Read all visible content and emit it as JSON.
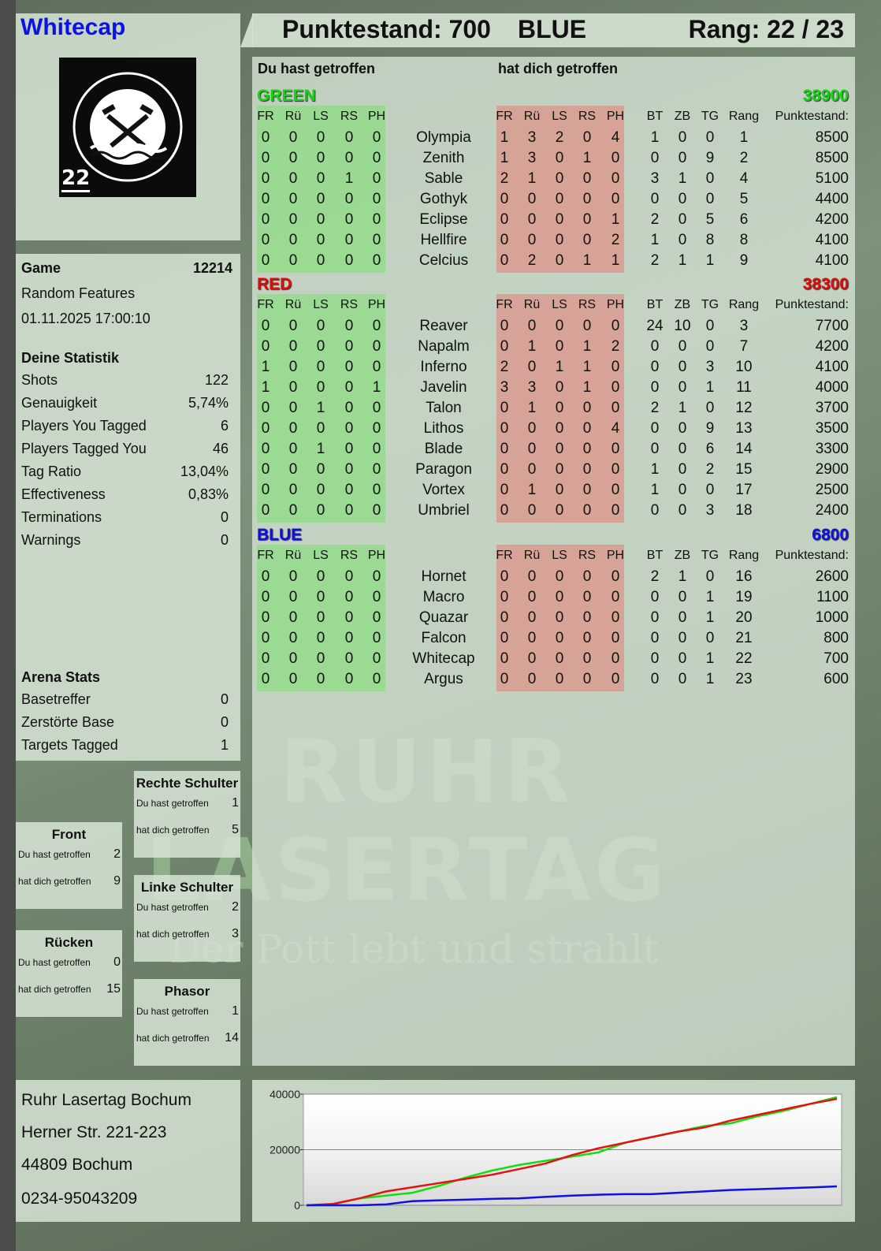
{
  "player": {
    "name": "Whitecap",
    "badge_number": "22",
    "logo_text": "RUHR LASERTAG"
  },
  "header": {
    "score_label": "Punktestand: 700",
    "team": "BLUE",
    "rank_label": "Rang: 22 / 23"
  },
  "game": {
    "label": "Game",
    "id": "12214",
    "mode": "Random Features",
    "datetime": "01.11.2025 17:00:10"
  },
  "stats": {
    "title": "Deine Statistik",
    "items": [
      {
        "label": "Shots",
        "value": "122"
      },
      {
        "label": "Genauigkeit",
        "value": "5,74%"
      },
      {
        "label": "Players You Tagged",
        "value": "6"
      },
      {
        "label": "Players Tagged You",
        "value": "46"
      },
      {
        "label": "Tag Ratio",
        "value": "13,04%"
      },
      {
        "label": "Effectiveness",
        "value": "0,83%"
      },
      {
        "label": "Terminations",
        "value": "0"
      },
      {
        "label": "Warnings",
        "value": "0"
      }
    ]
  },
  "arena": {
    "title": "Arena Stats",
    "items": [
      {
        "label": "Basetreffer",
        "value": "0"
      },
      {
        "label": "Zerstörte Base",
        "value": "0"
      },
      {
        "label": "Targets Tagged",
        "value": "1"
      }
    ]
  },
  "zones": [
    {
      "title": "Rechte Schulter",
      "you_hit_label": "Du hast getroffen",
      "you_hit": "1",
      "hit_you_label": "hat dich getroffen",
      "hit_you": "5"
    },
    {
      "title": "Front",
      "you_hit_label": "Du hast getroffen",
      "you_hit": "2",
      "hit_you_label": "hat dich getroffen",
      "hit_you": "9"
    },
    {
      "title": "Linke Schulter",
      "you_hit_label": "Du hast getroffen",
      "you_hit": "2",
      "hit_you_label": "hat dich getroffen",
      "hit_you": "3"
    },
    {
      "title": "Rücken",
      "you_hit_label": "Du hast getroffen",
      "you_hit": "0",
      "hit_you_label": "hat dich getroffen",
      "hit_you": "15"
    },
    {
      "title": "Phasor",
      "you_hit_label": "Du hast getroffen",
      "you_hit": "1",
      "hit_you_label": "hat dich getroffen",
      "hit_you": "14"
    }
  ],
  "address": {
    "line1": "Ruhr Lasertag Bochum",
    "line2": "Herner Str. 221-223",
    "line3": "44809 Bochum",
    "phone": "0234-95043209"
  },
  "watermark": {
    "line1": "RUHR",
    "line2": "LASERTAG",
    "slogan": "Der Pott lebt und strahlt"
  },
  "table": {
    "you_hit_heading": "Du hast getroffen",
    "hit_you_heading": "hat dich getroffen",
    "hit_columns": [
      "FR",
      "Rü",
      "LS",
      "RS",
      "PH"
    ],
    "stat_columns": [
      "BT",
      "ZB",
      "TG",
      "Rang"
    ],
    "score_column": "Punktestand:",
    "teams": [
      {
        "name": "GREEN",
        "score": "38900",
        "color": "#12d612",
        "players": [
          {
            "name": "Olympia",
            "you_hit": [
              0,
              0,
              0,
              0,
              0
            ],
            "hit_you": [
              1,
              3,
              2,
              0,
              4
            ],
            "stats": [
              1,
              0,
              0,
              1
            ],
            "score": "8500"
          },
          {
            "name": "Zenith",
            "you_hit": [
              0,
              0,
              0,
              0,
              0
            ],
            "hit_you": [
              1,
              3,
              0,
              1,
              0
            ],
            "stats": [
              0,
              0,
              9,
              2
            ],
            "score": "8500"
          },
          {
            "name": "Sable",
            "you_hit": [
              0,
              0,
              0,
              1,
              0
            ],
            "hit_you": [
              2,
              1,
              0,
              0,
              0
            ],
            "stats": [
              3,
              1,
              0,
              4
            ],
            "score": "5100"
          },
          {
            "name": "Gothyk",
            "you_hit": [
              0,
              0,
              0,
              0,
              0
            ],
            "hit_you": [
              0,
              0,
              0,
              0,
              0
            ],
            "stats": [
              0,
              0,
              0,
              5
            ],
            "score": "4400"
          },
          {
            "name": "Eclipse",
            "you_hit": [
              0,
              0,
              0,
              0,
              0
            ],
            "hit_you": [
              0,
              0,
              0,
              0,
              1
            ],
            "stats": [
              2,
              0,
              5,
              6
            ],
            "score": "4200"
          },
          {
            "name": "Hellfire",
            "you_hit": [
              0,
              0,
              0,
              0,
              0
            ],
            "hit_you": [
              0,
              0,
              0,
              0,
              2
            ],
            "stats": [
              1,
              0,
              8,
              8
            ],
            "score": "4100"
          },
          {
            "name": "Celcius",
            "you_hit": [
              0,
              0,
              0,
              0,
              0
            ],
            "hit_you": [
              0,
              2,
              0,
              1,
              1
            ],
            "stats": [
              2,
              1,
              1,
              9
            ],
            "score": "4100"
          }
        ]
      },
      {
        "name": "RED",
        "score": "38300",
        "color": "#e00c0c",
        "players": [
          {
            "name": "Reaver",
            "you_hit": [
              0,
              0,
              0,
              0,
              0
            ],
            "hit_you": [
              0,
              0,
              0,
              0,
              0
            ],
            "stats": [
              24,
              10,
              0,
              3
            ],
            "score": "7700"
          },
          {
            "name": "Napalm",
            "you_hit": [
              0,
              0,
              0,
              0,
              0
            ],
            "hit_you": [
              0,
              1,
              0,
              1,
              2
            ],
            "stats": [
              0,
              0,
              0,
              7
            ],
            "score": "4200"
          },
          {
            "name": "Inferno",
            "you_hit": [
              1,
              0,
              0,
              0,
              0
            ],
            "hit_you": [
              2,
              0,
              1,
              1,
              0
            ],
            "stats": [
              0,
              0,
              3,
              10
            ],
            "score": "4100"
          },
          {
            "name": "Javelin",
            "you_hit": [
              1,
              0,
              0,
              0,
              1
            ],
            "hit_you": [
              3,
              3,
              0,
              1,
              0
            ],
            "stats": [
              0,
              0,
              1,
              11
            ],
            "score": "4000"
          },
          {
            "name": "Talon",
            "you_hit": [
              0,
              0,
              1,
              0,
              0
            ],
            "hit_you": [
              0,
              1,
              0,
              0,
              0
            ],
            "stats": [
              2,
              1,
              0,
              12
            ],
            "score": "3700"
          },
          {
            "name": "Lithos",
            "you_hit": [
              0,
              0,
              0,
              0,
              0
            ],
            "hit_you": [
              0,
              0,
              0,
              0,
              4
            ],
            "stats": [
              0,
              0,
              9,
              13
            ],
            "score": "3500"
          },
          {
            "name": "Blade",
            "you_hit": [
              0,
              0,
              1,
              0,
              0
            ],
            "hit_you": [
              0,
              0,
              0,
              0,
              0
            ],
            "stats": [
              0,
              0,
              6,
              14
            ],
            "score": "3300"
          },
          {
            "name": "Paragon",
            "you_hit": [
              0,
              0,
              0,
              0,
              0
            ],
            "hit_you": [
              0,
              0,
              0,
              0,
              0
            ],
            "stats": [
              1,
              0,
              2,
              15
            ],
            "score": "2900"
          },
          {
            "name": "Vortex",
            "you_hit": [
              0,
              0,
              0,
              0,
              0
            ],
            "hit_you": [
              0,
              1,
              0,
              0,
              0
            ],
            "stats": [
              1,
              0,
              0,
              17
            ],
            "score": "2500"
          },
          {
            "name": "Umbriel",
            "you_hit": [
              0,
              0,
              0,
              0,
              0
            ],
            "hit_you": [
              0,
              0,
              0,
              0,
              0
            ],
            "stats": [
              0,
              0,
              3,
              18
            ],
            "score": "2400"
          }
        ]
      },
      {
        "name": "BLUE",
        "score": "6800",
        "color": "#1010e0",
        "players": [
          {
            "name": "Hornet",
            "you_hit": [
              0,
              0,
              0,
              0,
              0
            ],
            "hit_you": [
              0,
              0,
              0,
              0,
              0
            ],
            "stats": [
              2,
              1,
              0,
              16
            ],
            "score": "2600"
          },
          {
            "name": "Macro",
            "you_hit": [
              0,
              0,
              0,
              0,
              0
            ],
            "hit_you": [
              0,
              0,
              0,
              0,
              0
            ],
            "stats": [
              0,
              0,
              1,
              19
            ],
            "score": "1100"
          },
          {
            "name": "Quazar",
            "you_hit": [
              0,
              0,
              0,
              0,
              0
            ],
            "hit_you": [
              0,
              0,
              0,
              0,
              0
            ],
            "stats": [
              0,
              0,
              1,
              20
            ],
            "score": "1000"
          },
          {
            "name": "Falcon",
            "you_hit": [
              0,
              0,
              0,
              0,
              0
            ],
            "hit_you": [
              0,
              0,
              0,
              0,
              0
            ],
            "stats": [
              0,
              0,
              0,
              21
            ],
            "score": "800"
          },
          {
            "name": "Whitecap",
            "you_hit": [
              0,
              0,
              0,
              0,
              0
            ],
            "hit_you": [
              0,
              0,
              0,
              0,
              0
            ],
            "stats": [
              0,
              0,
              1,
              22
            ],
            "score": "700"
          },
          {
            "name": "Argus",
            "you_hit": [
              0,
              0,
              0,
              0,
              0
            ],
            "hit_you": [
              0,
              0,
              0,
              0,
              0
            ],
            "stats": [
              0,
              0,
              1,
              23
            ],
            "score": "600"
          }
        ]
      }
    ]
  },
  "chart_data": {
    "type": "line",
    "title": "",
    "xlabel": "",
    "ylabel": "",
    "ylim": [
      0,
      40000
    ],
    "yticks": [
      "0",
      "20000",
      "40000"
    ],
    "grid": true,
    "series": [
      {
        "color": "#10e010",
        "values": [
          0,
          300,
          2500,
          3500,
          4500,
          7000,
          10000,
          12500,
          14500,
          16000,
          17500,
          19000,
          22500,
          24500,
          26500,
          28500,
          29500,
          32000,
          34000,
          36500,
          38900
        ]
      },
      {
        "color": "#e81010",
        "values": [
          0,
          500,
          2500,
          5000,
          6500,
          8000,
          9500,
          11000,
          13000,
          15000,
          18000,
          20500,
          22500,
          24500,
          26500,
          28000,
          30500,
          32500,
          34500,
          36500,
          38300
        ]
      },
      {
        "color": "#1010e0",
        "values": [
          0,
          0,
          0,
          300,
          1500,
          1800,
          2000,
          2300,
          2500,
          3000,
          3500,
          3800,
          4000,
          4000,
          4500,
          5000,
          5500,
          5800,
          6100,
          6400,
          6800
        ]
      }
    ]
  }
}
